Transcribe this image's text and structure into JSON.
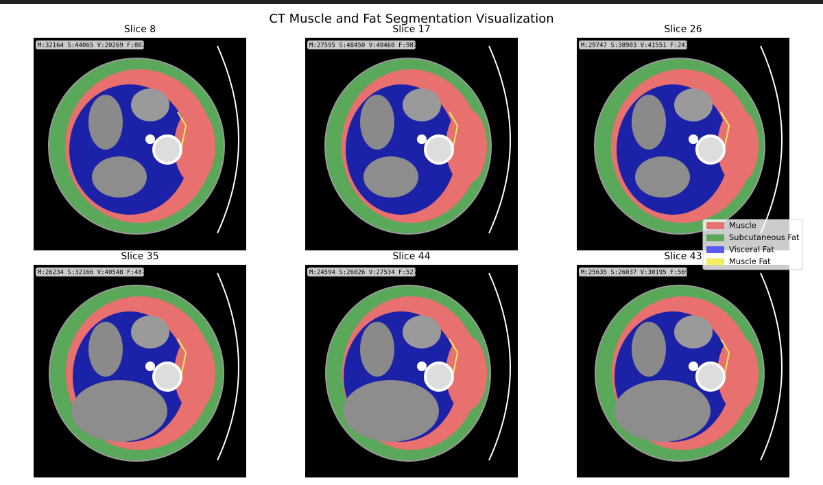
{
  "title": "CT Muscle and Fat Segmentation Visualization",
  "panels": [
    {
      "title": "Slice 8",
      "stats": "M:32164 S:44065 V:20269 F:802"
    },
    {
      "title": "Slice 17",
      "stats": "M:27595 S:48450 V:40460 F:987"
    },
    {
      "title": "Slice 26",
      "stats": "M:29747 S:38903 V:41551 F:243"
    },
    {
      "title": "Slice 35",
      "stats": "M:26234 S:32166 V:40548 F:487"
    },
    {
      "title": "Slice 44",
      "stats": "M:24594 S:26026 V:27534 F:527"
    },
    {
      "title": "Slice 43",
      "stats": "M:25635 S:26037 V:30195 F:569"
    }
  ],
  "legend": [
    {
      "name": "Muscle",
      "color": "#e8706e"
    },
    {
      "name": "Subcutaneous Fat",
      "color": "#5aa85a"
    },
    {
      "name": "Visceral Fat",
      "color": "#5a5aee"
    },
    {
      "name": "Muscle Fat",
      "color": "#f2f060"
    }
  ]
}
